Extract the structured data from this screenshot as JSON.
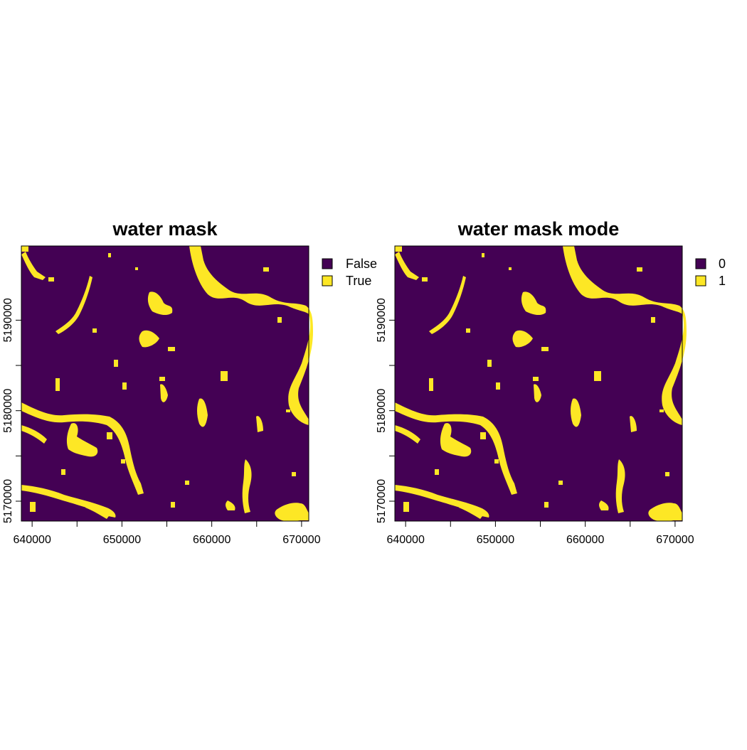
{
  "colors": {
    "false_fill": "#440154",
    "true_fill": "#FDE725",
    "frame": "#000000",
    "background": "#FFFFFF"
  },
  "x_ticks": [
    640000,
    645000,
    650000,
    655000,
    660000,
    665000,
    670000
  ],
  "x_labels": [
    {
      "value": 640000,
      "text": "640000"
    },
    {
      "value": 650000,
      "text": "650000"
    },
    {
      "value": 660000,
      "text": "660000"
    },
    {
      "value": 670000,
      "text": "670000"
    }
  ],
  "y_ticks": [
    5170000,
    5175000,
    5180000,
    5185000,
    5190000
  ],
  "y_labels": [
    {
      "value": 5170000,
      "text": "5170000"
    },
    {
      "value": 5180000,
      "text": "5180000"
    },
    {
      "value": 5190000,
      "text": "5190000"
    }
  ],
  "panels": [
    {
      "title": "water mask",
      "legend": [
        {
          "label": "False",
          "color": "#440154"
        },
        {
          "label": "True",
          "color": "#FDE725"
        }
      ]
    },
    {
      "title": "water mask mode",
      "legend": [
        {
          "label": "0",
          "color": "#440154"
        },
        {
          "label": "1",
          "color": "#FDE725"
        }
      ]
    }
  ]
}
